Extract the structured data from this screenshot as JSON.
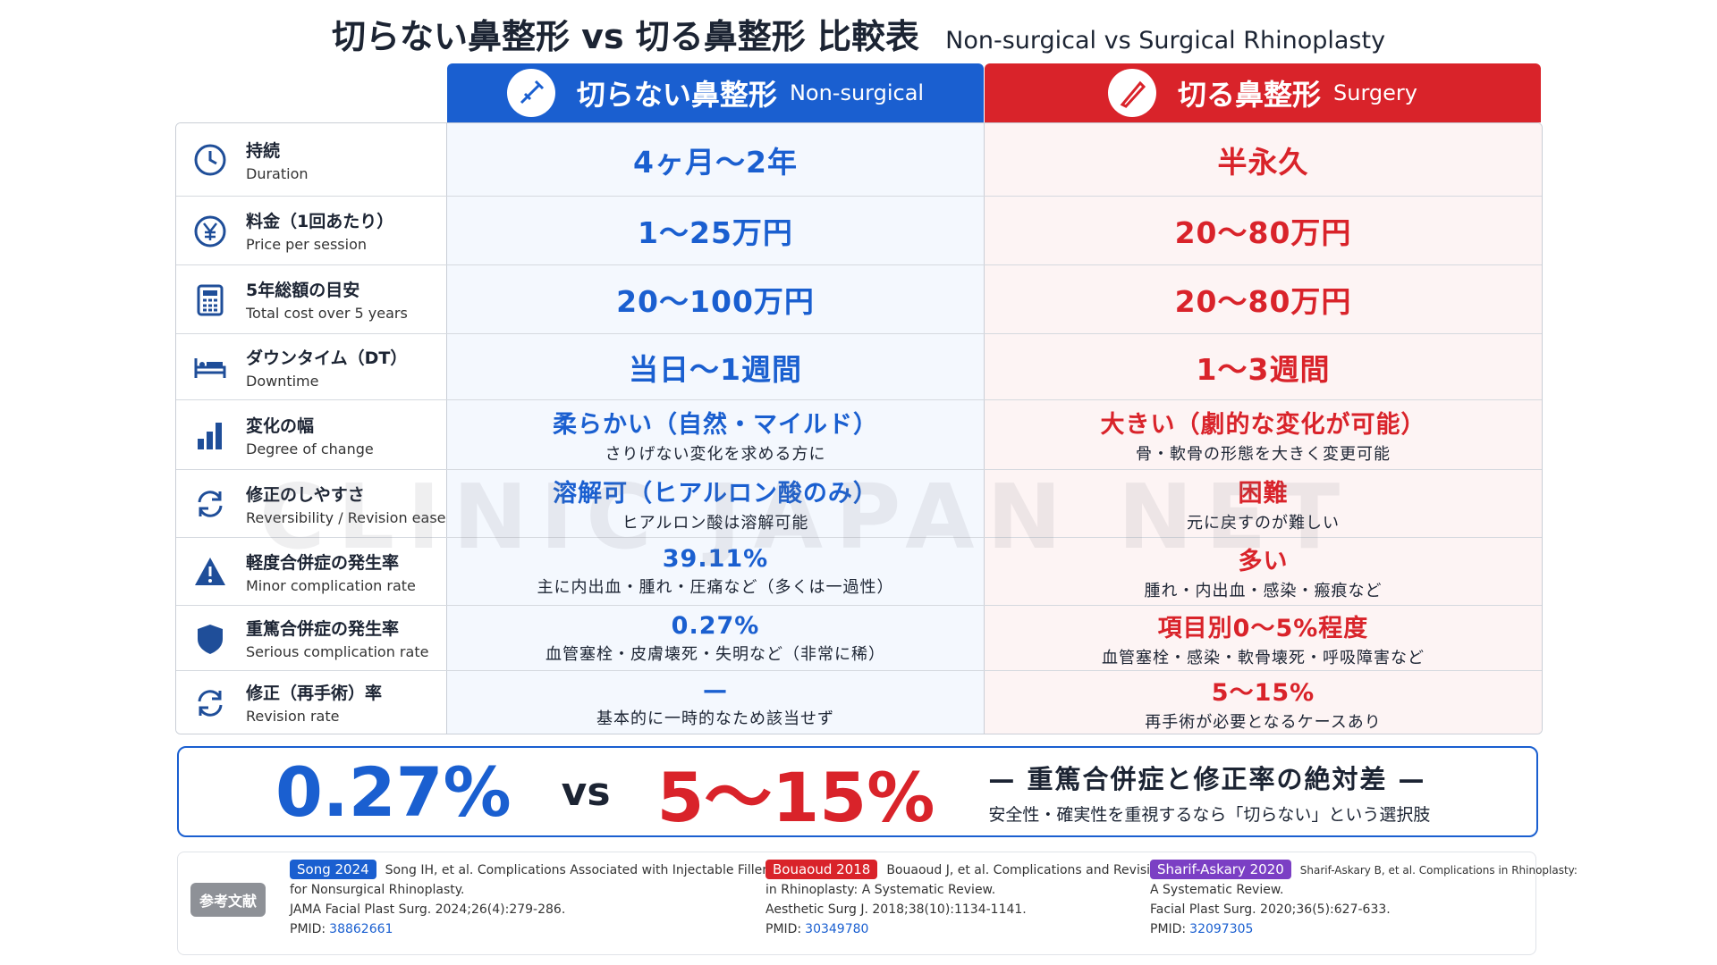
{
  "header": {
    "title": "切らない鼻整形 vs 切る鼻整形 比較表",
    "subtitle": "Non-surgical vs Surgical Rhinoplasty"
  },
  "columns": [
    {
      "title": "切らない鼻整形",
      "subtitle": "Non-surgical"
    },
    {
      "title": "切る鼻整形",
      "subtitle": "Surgery"
    }
  ],
  "watermark": "CLINIC JAPAN NET",
  "rows": [
    {
      "label": "持続",
      "label_en": "Duration",
      "nonsurgical": {
        "main": "4ヶ月～2年"
      },
      "surgical": {
        "main": "半永久"
      }
    },
    {
      "label": "料金（1回あたり）",
      "label_en": "Price per session",
      "nonsurgical": {
        "main": "1～25万円"
      },
      "surgical": {
        "main": "20～80万円"
      }
    },
    {
      "label": "5年総額の目安",
      "label_en": "Total cost over 5 years",
      "nonsurgical": {
        "main": "20～100万円"
      },
      "surgical": {
        "main": "20～80万円"
      }
    },
    {
      "label": "ダウンタイム（DT）",
      "label_en": "Downtime",
      "nonsurgical": {
        "main": "当日～1週間"
      },
      "surgical": {
        "main": "1～3週間"
      }
    },
    {
      "label": "変化の幅",
      "label_en": "Degree of change",
      "nonsurgical": {
        "main": "柔らかい（自然・マイルド）",
        "sub": "さりげない変化を求める方に"
      },
      "surgical": {
        "main": "大きい（劇的な変化が可能）",
        "sub": "骨・軟骨の形態を大きく変更可能"
      }
    },
    {
      "label": "修正のしやすさ",
      "label_en": "Reversibility / Revision ease",
      "nonsurgical": {
        "main": "溶解可（ヒアルロン酸のみ）",
        "sub": "ヒアルロン酸は溶解可能"
      },
      "surgical": {
        "main": "困難",
        "sub": "元に戻すのが難しい"
      }
    },
    {
      "label": "軽度合併症の発生率",
      "label_en": "Minor complication rate",
      "nonsurgical": {
        "main": "39.11%",
        "sub": "主に内出血・腫れ・圧痛など（多くは一過性）"
      },
      "surgical": {
        "main": "多い",
        "sub": "腫れ・内出血・感染・瘢痕など"
      }
    },
    {
      "label": "重篤合併症の発生率",
      "label_en": "Serious complication rate",
      "nonsurgical": {
        "main": "0.27%",
        "sub": "血管塞栓・皮膚壊死・失明など（非常に稀）"
      },
      "surgical": {
        "main": "項目別0～5%程度",
        "sub": "血管塞栓・感染・軟骨壊死・呼吸障害など"
      }
    },
    {
      "label": "修正（再手術）率",
      "label_en": "Revision rate",
      "nonsurgical": {
        "main": "—",
        "sub": "基本的に一時的なため該当せず"
      },
      "surgical": {
        "main": "5～15%",
        "sub": "再手術が必要となるケースあり"
      }
    }
  ],
  "summary": {
    "left": "0.27%",
    "vs": "vs",
    "right": "5～15%",
    "headline": "— 重篤合併症と修正率の絶対差 —",
    "note": "安全性・確実性を重視するなら「切らない」という選択肢"
  },
  "references": {
    "badge": "参考文献",
    "items": [
      {
        "tag": "Song 2024",
        "lines": [
          "Song IH, et al. Complications Associated with Injectable Fillers",
          "for Nonsurgical Rhinoplasty.",
          "JAMA Facial Plast Surg. 2024;26(4):279-286."
        ],
        "pmid_label": "PMID:",
        "pmid": "38862661"
      },
      {
        "tag": "Bouaoud 2018",
        "lines": [
          "Bouaoud J, et al. Complications and Revision",
          "in Rhinoplasty: A Systematic Review.",
          "Aesthetic Surg J. 2018;38(10):1134-1141."
        ],
        "pmid_label": "PMID:",
        "pmid": "30349780"
      },
      {
        "tag": "Sharif-Askary 2020",
        "lines": [
          "Sharif-Askary B, et al. Complications in Rhinoplasty:",
          "A Systematic Review.",
          "Facial Plast Surg. 2020;36(5):627-633."
        ],
        "pmid_label": "PMID:",
        "pmid": "32097305"
      }
    ]
  }
}
